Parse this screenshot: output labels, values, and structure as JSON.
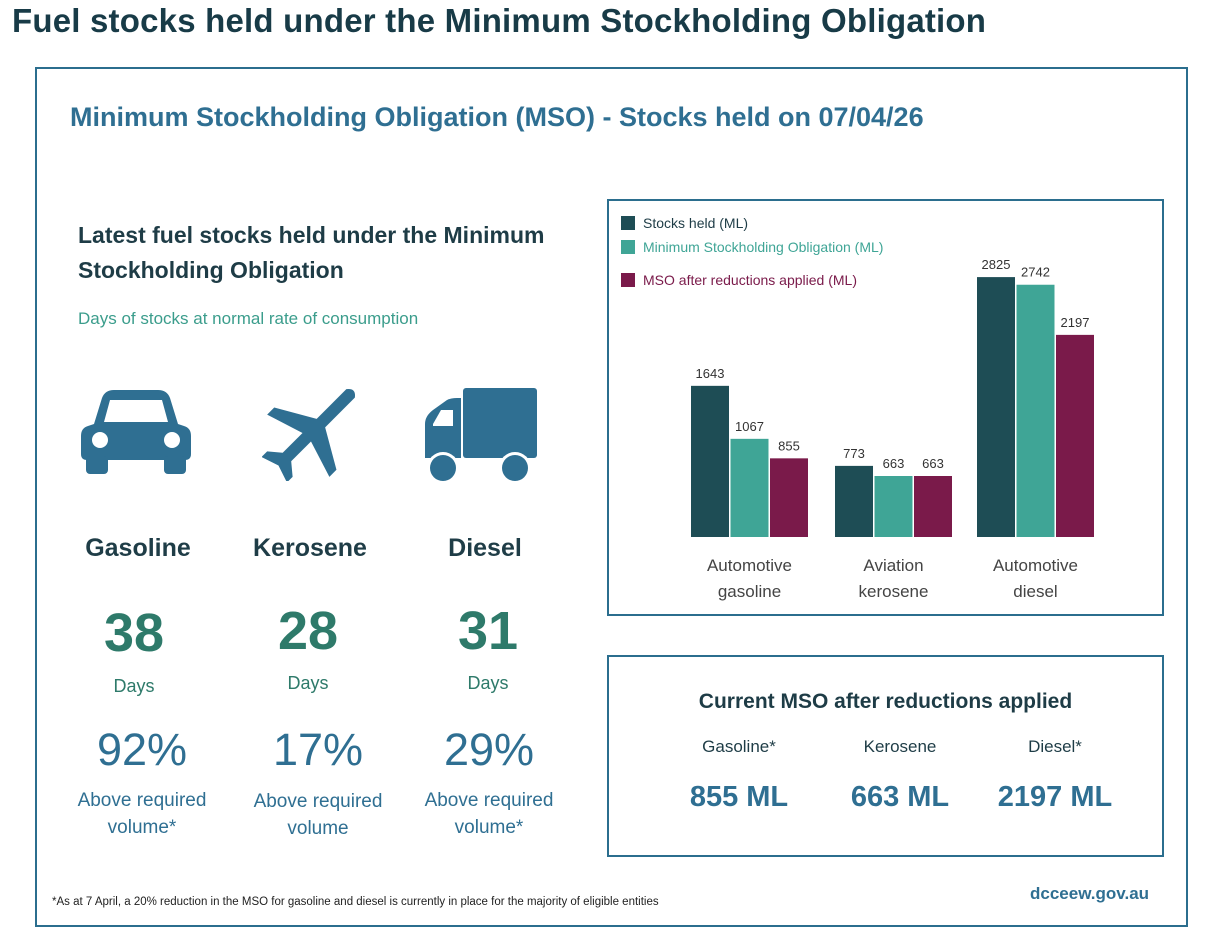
{
  "page_title": "Fuel stocks held under the Minimum Stockholding Obligation",
  "header": "Minimum Stockholding Obligation (MSO) - Stocks held on 07/04/26",
  "left": {
    "title_line1": "Latest fuel stocks held under the Minimum",
    "title_line2": "Stockholding Obligation",
    "subtitle": "Days of stocks at normal rate of consumption",
    "fuels": [
      {
        "name": "Gasoline",
        "icon": "car-icon",
        "days": "38",
        "days_label": "Days",
        "pct": "92%",
        "above_line1": "Above required",
        "above_line2": "volume*"
      },
      {
        "name": "Kerosene",
        "icon": "airplane-icon",
        "days": "28",
        "days_label": "Days",
        "pct": "17%",
        "above_line1": "Above required",
        "above_line2": "volume"
      },
      {
        "name": "Diesel",
        "icon": "truck-icon",
        "days": "31",
        "days_label": "Days",
        "pct": "29%",
        "above_line1": "Above required",
        "above_line2": "volume*"
      }
    ]
  },
  "chart_data": {
    "type": "bar",
    "categories": [
      "Automotive gasoline",
      "Aviation kerosene",
      "Automotive diesel"
    ],
    "category_lines": [
      [
        "Automotive",
        "gasoline"
      ],
      [
        "Aviation",
        "kerosene"
      ],
      [
        "Automotive",
        "diesel"
      ]
    ],
    "series": [
      {
        "name": "Stocks held (ML)",
        "color": "#1e4d55",
        "values": [
          1643,
          773,
          2825
        ]
      },
      {
        "name": "Minimum Stockholding Obligation (ML)",
        "color": "#3fa596",
        "values": [
          1067,
          663,
          2742
        ]
      },
      {
        "name": "MSO after reductions applied (ML)",
        "color": "#7a1a4a",
        "values": [
          855,
          663,
          2197
        ]
      }
    ],
    "ylim": [
      0,
      3000
    ],
    "legend": "top-left",
    "grid": false
  },
  "mso": {
    "title": "Current MSO after reductions applied",
    "items": [
      {
        "label": "Gasoline*",
        "value": "855 ML"
      },
      {
        "label": "Kerosene",
        "value": "663 ML"
      },
      {
        "label": "Diesel*",
        "value": "2197 ML"
      }
    ]
  },
  "footnote": "*As at 7 April, a 20% reduction in the MSO for gasoline and diesel is currently in place for the majority of eligible entities",
  "site": "dcceew.gov.au",
  "colors": {
    "accent": "#2f6f92",
    "days": "#2e7a6a",
    "dark": "#1e4d55",
    "teal": "#3fa596",
    "plum": "#7a1a4a"
  }
}
